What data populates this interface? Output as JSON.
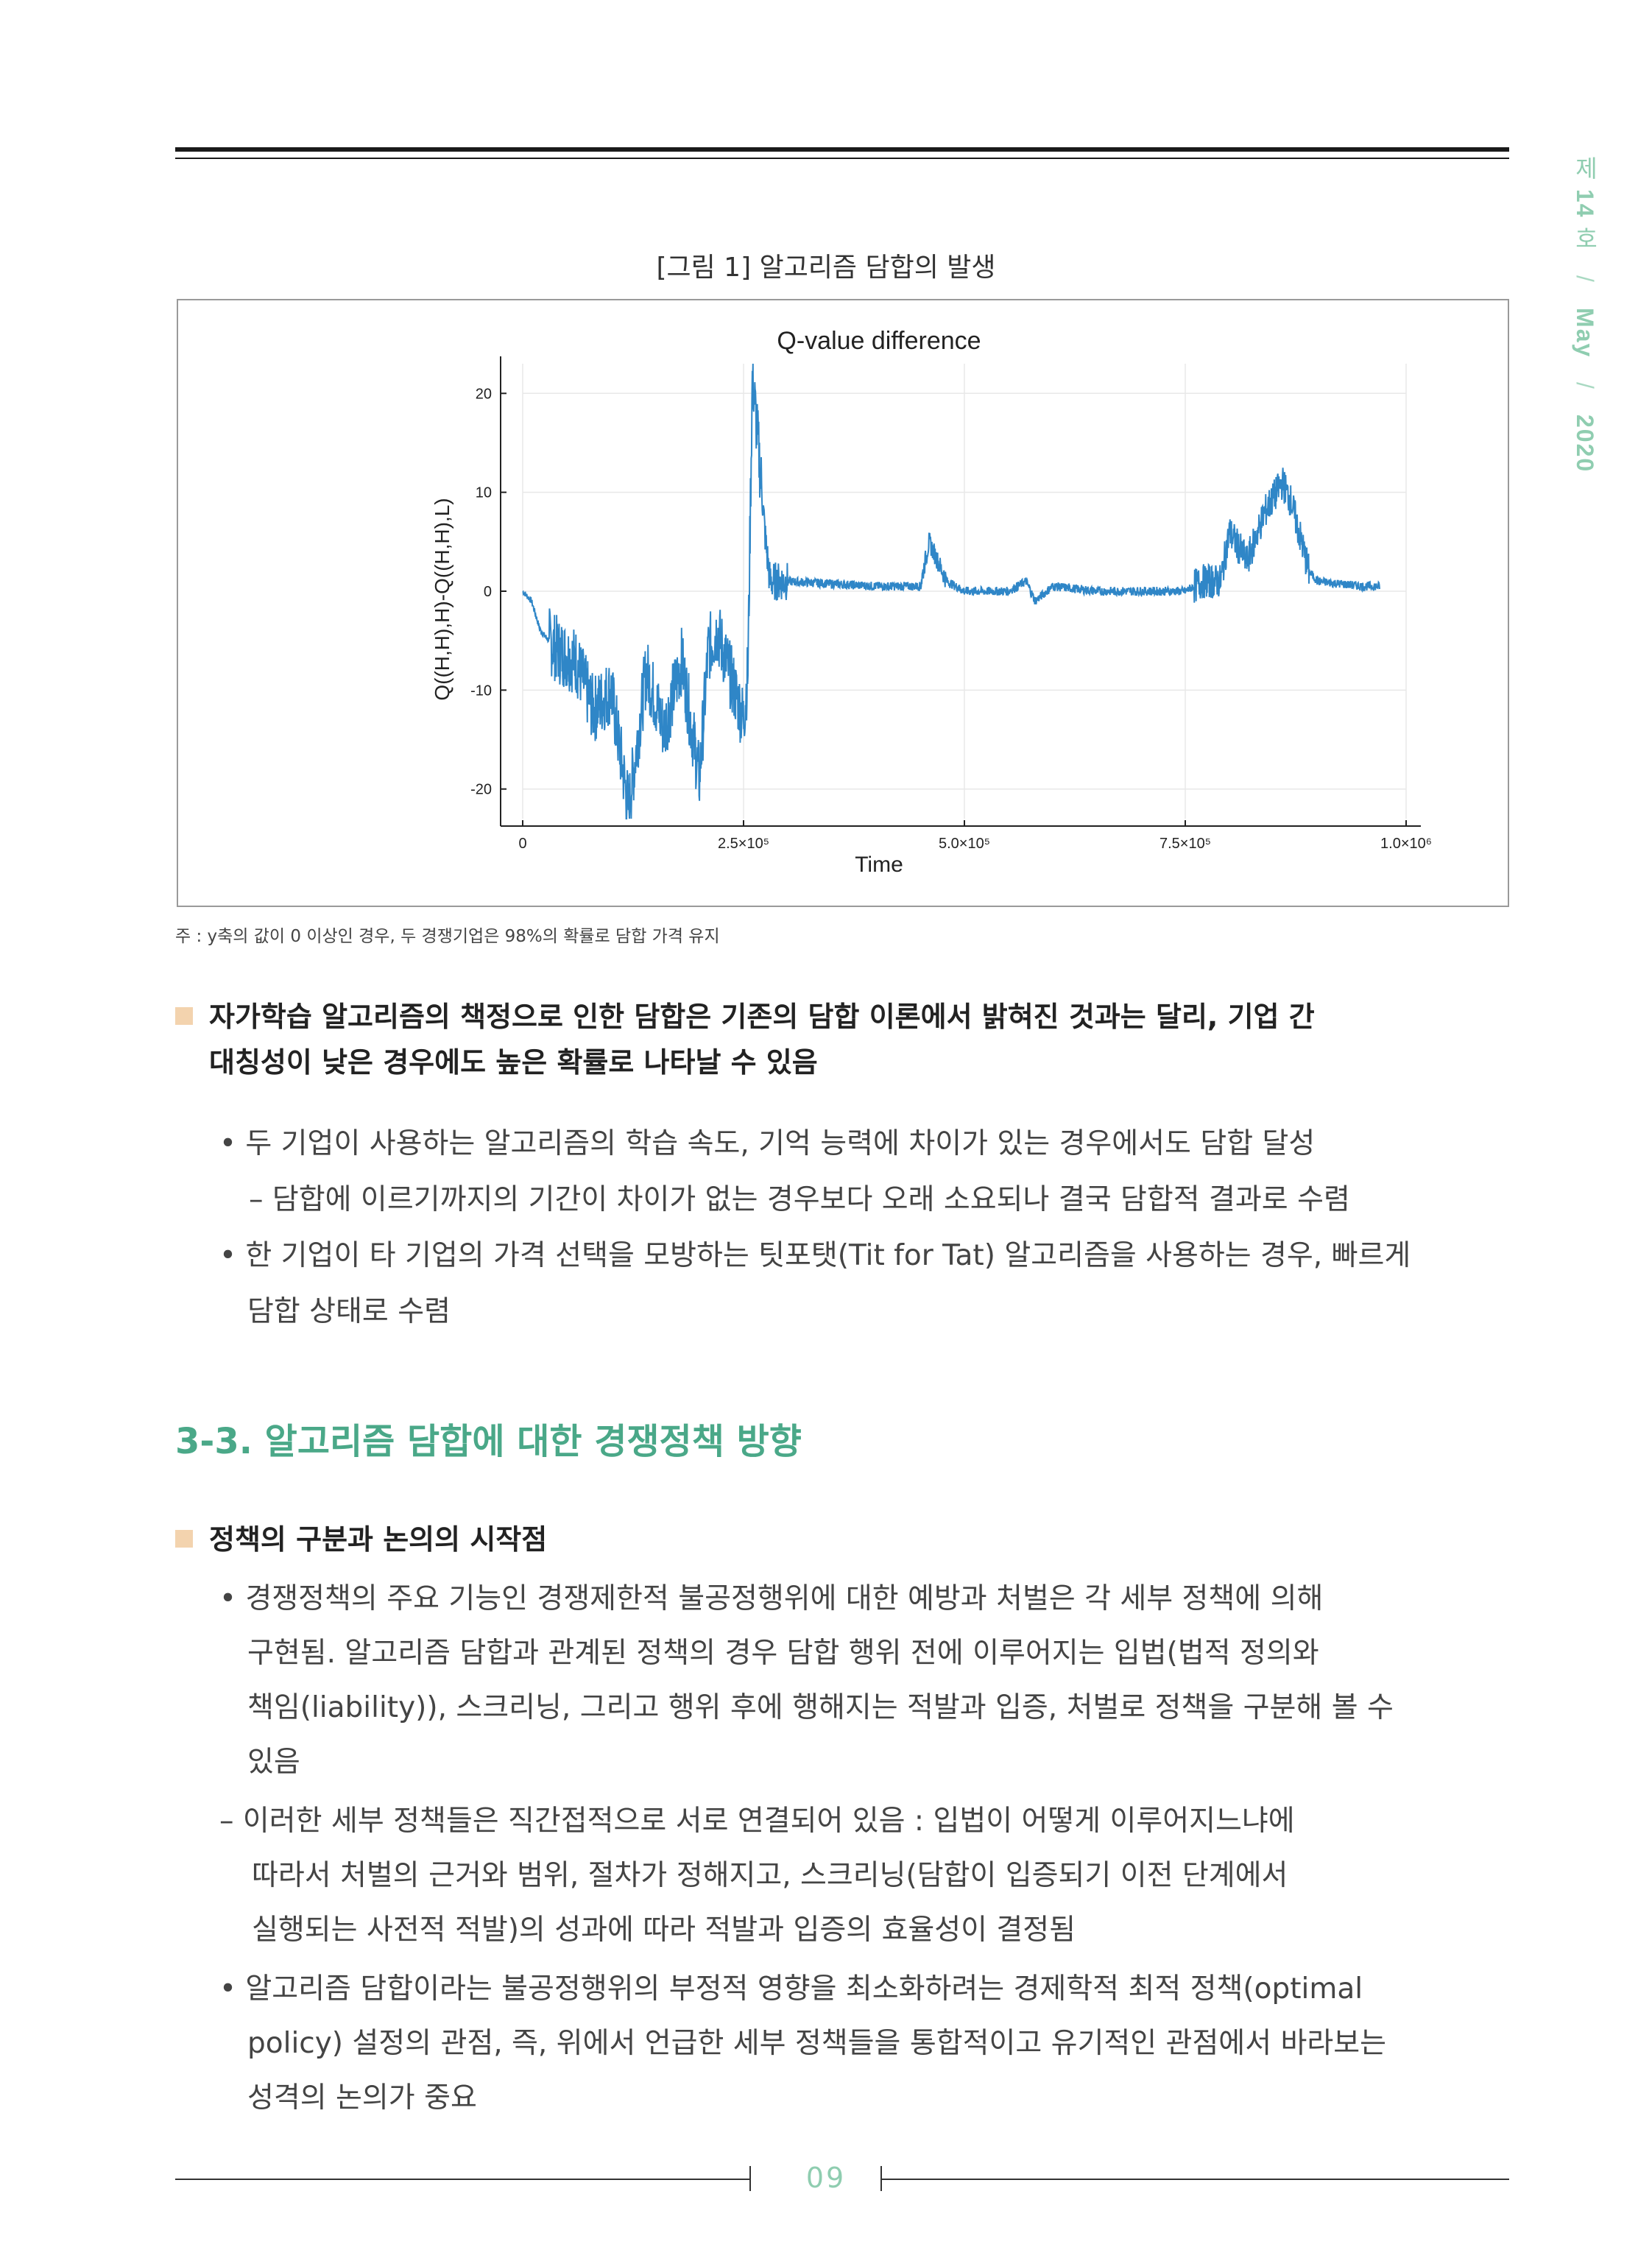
{
  "sidebar": {
    "issue_prefix": "제",
    "issue_num": "14",
    "issue_suffix": "호",
    "slash": "/",
    "month": "May",
    "year": "2020"
  },
  "figure": {
    "caption": "[그림 1]  알고리즘 담합의 발생"
  },
  "chart_data": {
    "type": "line",
    "title": "Q-value difference",
    "xlabel": "Time",
    "ylabel": "Q((H,H),H)-Q((H,H),L)",
    "x_ticks": [
      "0",
      "2.5×10⁵",
      "5.0×10⁵",
      "7.5×10⁵",
      "1.0×10⁶"
    ],
    "y_ticks": [
      "20",
      "10",
      "0",
      "-10",
      "-20"
    ],
    "xlim": [
      0,
      1000000
    ],
    "ylim": [
      -23,
      23
    ],
    "grid": true,
    "color": "#2f86c7",
    "series": [
      {
        "x": [
          0,
          10000,
          20000,
          40000,
          60000,
          80000,
          100000,
          110000,
          120000,
          140000,
          160000,
          180000,
          200000,
          210000,
          220000,
          240000,
          250000,
          255000,
          260000,
          270000,
          275000,
          280000,
          300000,
          400000,
          450000,
          460000,
          480000,
          500000,
          550000,
          570000,
          580000,
          600000,
          650000,
          700000,
          750000,
          770000,
          790000,
          800000,
          820000,
          840000,
          860000,
          870000,
          890000,
          900000,
          950000,
          1000000
        ],
        "y": [
          0,
          -1,
          -4,
          -6,
          -7,
          -12,
          -10,
          -16,
          -22,
          -8,
          -14,
          -7,
          -19,
          -6,
          -4,
          -10,
          -13,
          -8,
          22,
          11,
          5,
          1,
          1,
          0.5,
          0.5,
          5,
          1,
          0,
          0,
          1,
          -1,
          0.5,
          0,
          0,
          0,
          1,
          1,
          6,
          3,
          8,
          11,
          9,
          2,
          1,
          0.5,
          0.5
        ]
      }
    ]
  },
  "note": "주 : y축의 값이 0 이상인 경우, 두 경쟁기업은 98%의 확률로 담합 가격 유지",
  "section1": {
    "title_line1": "자가학습 알고리즘의 책정으로 인한 담합은 기존의 담합 이론에서 밝혀진 것과는 달리, 기업 간",
    "title_line2": "대칭성이 낮은 경우에도 높은 확률로 나타날 수 있음",
    "b1": "• 두 기업이 사용하는 알고리즘의 학습 속도, 기억 능력에 차이가 있는 경우에서도 담합 달성",
    "b1_sub": "– 담합에 이르기까지의 기간이 차이가 없는 경우보다 오래 소요되나 결국 담합적 결과로 수렴",
    "b2_line1": "• 한 기업이 타 기업의 가격 선택을 모방하는 팃포탯(Tit for Tat) 알고리즘을 사용하는 경우, 빠르게",
    "b2_line2": "담합 상태로 수렴"
  },
  "heading": "3-3. 알고리즘 담합에 대한 경쟁정책 방향",
  "section2": {
    "title": "정책의 구분과 논의의 시작점",
    "b1_line1": "• 경쟁정책의 주요 기능인 경쟁제한적 불공정행위에 대한 예방과 처벌은 각 세부 정책에 의해",
    "b1_line2": "구현됨. 알고리즘 담합과 관계된 정책의 경우 담합 행위 전에 이루어지는 입법(법적 정의와",
    "b1_line3": "책임(liability)), 스크리닝, 그리고 행위 후에 행해지는 적발과 입증, 처벌로 정책을 구분해 볼 수",
    "b1_line4": "있음",
    "dash_line1": "– 이러한 세부 정책들은 직간접적으로 서로 연결되어 있음 : 입법이 어떻게 이루어지느냐에",
    "dash_line2": "따라서 처벌의 근거와 범위, 절차가 정해지고, 스크리닝(담합이 입증되기 이전 단계에서",
    "dash_line3": "실행되는 사전적 적발)의 성과에 따라 적발과 입증의 효율성이 결정됨",
    "b2_line1": "• 알고리즘 담합이라는 불공정행위의 부정적 영향을 최소화하려는 경제학적 최적 정책(optimal",
    "b2_line2": "policy) 설정의 관점, 즉, 위에서 언급한 세부 정책들을 통합적이고 유기적인 관점에서 바라보는",
    "b2_line3": "성격의 논의가 중요"
  },
  "footer": {
    "page": "09"
  }
}
